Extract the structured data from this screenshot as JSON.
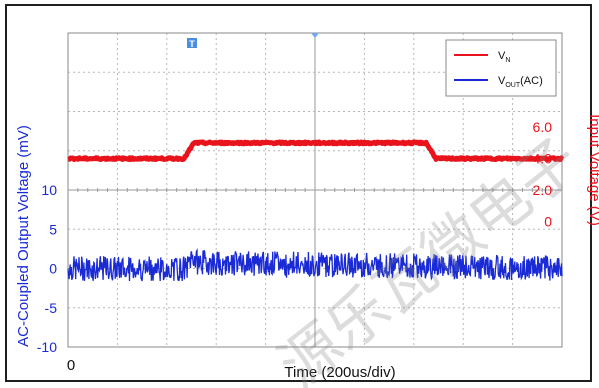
{
  "chart_data": {
    "type": "line",
    "xlabel": "Time  (200us/div)",
    "x_tick_labels": [
      "0"
    ],
    "ylabel_left": "AC-Coupled Output Voltage   (mV)",
    "ylabel_right": "Input Voltage   (V)",
    "left_axis": {
      "ticks": [
        10,
        5,
        0,
        -5,
        -10
      ],
      "ylim": [
        -10,
        30
      ]
    },
    "right_axis": {
      "ticks": [
        "6.0",
        "4.0",
        "2.0",
        "0"
      ],
      "ylim": [
        -8,
        12
      ]
    },
    "grid": true,
    "legend_position": "top-right",
    "series": [
      {
        "name": "V_N",
        "legend_main": "V",
        "legend_sub": "N",
        "color": "#e8131b",
        "axis": "right",
        "x": [
          0,
          2.35,
          2.55,
          7.25,
          7.45,
          10
        ],
        "values": [
          4.0,
          4.0,
          5.0,
          5.0,
          4.0,
          4.0
        ]
      },
      {
        "name": "V_OUT(AC)",
        "legend_main": "V",
        "legend_sub": "OUT",
        "legend_suffix": "(AC)",
        "color": "#1a2bd6",
        "axis": "left",
        "x": [
          0,
          2.4,
          2.5,
          10
        ],
        "values": [
          0,
          0,
          0.8,
          0
        ],
        "noise_pp": 2
      }
    ],
    "markers": {
      "trigger_label": "T"
    },
    "watermark": "源乐瓦微电子"
  }
}
